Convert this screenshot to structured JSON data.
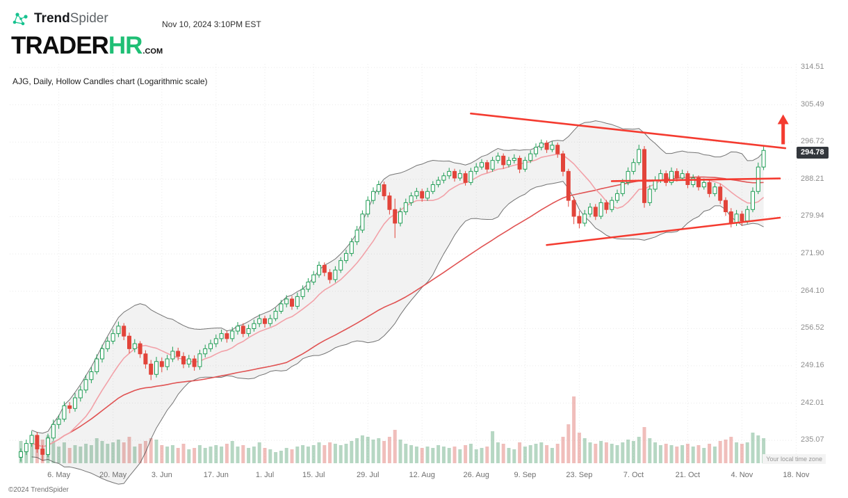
{
  "header": {
    "logo": {
      "trend": "Trend",
      "spider": "Spider"
    },
    "timestamp": "Nov 10, 2024 3:10PM EST",
    "site_logo": {
      "trader": "TRADER",
      "hr": "HR",
      "com": ".COM"
    },
    "subtitle": "AJG, Daily, Hollow Candles chart (Logarithmic scale)"
  },
  "price_axis": {
    "labels": [
      "314.51",
      "305.49",
      "296.72",
      "288.21",
      "279.94",
      "271.90",
      "264.10",
      "256.52",
      "249.16",
      "242.01",
      "235.07"
    ],
    "current_price": "294.78"
  },
  "footer": {
    "copyright": "©2024 TrendSpider",
    "timezone_note": "Your local time zone"
  },
  "chart_data": {
    "type": "candlestick",
    "symbol": "AJG",
    "timeframe": "Daily",
    "style": "Hollow Candles",
    "scale": "Logarithmic",
    "title": "AJG, Daily, Hollow Candles chart (Logarithmic scale)",
    "y_range": [
      231,
      316.5
    ],
    "x_ticks": [
      {
        "label": "6. May",
        "t": 7
      },
      {
        "label": "20. May",
        "t": 17
      },
      {
        "label": "3. Jun",
        "t": 26
      },
      {
        "label": "17. Jun",
        "t": 36
      },
      {
        "label": "1. Jul",
        "t": 45
      },
      {
        "label": "15. Jul",
        "t": 54
      },
      {
        "label": "29. Jul",
        "t": 64
      },
      {
        "label": "12. Aug",
        "t": 74
      },
      {
        "label": "26. Aug",
        "t": 84
      },
      {
        "label": "9. Sep",
        "t": 93
      },
      {
        "label": "23. Sep",
        "t": 103
      },
      {
        "label": "7. Oct",
        "t": 113
      },
      {
        "label": "21. Oct",
        "t": 123
      },
      {
        "label": "4. Nov",
        "t": 133
      },
      {
        "label": "18. Nov",
        "t": 143
      }
    ],
    "columns": [
      "date",
      "open",
      "high",
      "low",
      "close",
      "volume_m"
    ],
    "candles": [
      [
        "Apr 25",
        232.0,
        233.6,
        231.2,
        233.0,
        1.6
      ],
      [
        "Apr 26",
        233.0,
        235.2,
        232.4,
        234.5,
        1.4
      ],
      [
        "Apr 29",
        234.5,
        236.8,
        233.9,
        236.0,
        1.8
      ],
      [
        "Apr 30",
        236.0,
        236.6,
        232.8,
        233.5,
        1.5
      ],
      [
        "May 1",
        233.5,
        234.2,
        231.3,
        232.5,
        1.7
      ],
      [
        "May 2",
        232.5,
        236.3,
        232.0,
        235.5,
        2.0
      ],
      [
        "May 3",
        235.5,
        238.9,
        235.0,
        238.0,
        1.6
      ],
      [
        "May 6",
        238.0,
        239.8,
        237.2,
        239.0,
        1.2
      ],
      [
        "May 7",
        239.0,
        242.3,
        238.5,
        241.5,
        1.5
      ],
      [
        "May 8",
        241.5,
        242.2,
        240.1,
        241.0,
        1.1
      ],
      [
        "May 9",
        241.0,
        243.9,
        240.4,
        243.0,
        1.3
      ],
      [
        "May 10",
        243.0,
        245.3,
        242.3,
        244.5,
        1.2
      ],
      [
        "May 13",
        244.5,
        247.4,
        243.9,
        246.5,
        1.4
      ],
      [
        "May 14",
        246.5,
        248.9,
        245.8,
        248.0,
        1.3
      ],
      [
        "May 15",
        248.0,
        251.4,
        247.5,
        250.5,
        1.8
      ],
      [
        "May 16",
        250.5,
        253.3,
        249.8,
        252.5,
        1.6
      ],
      [
        "May 17",
        252.5,
        254.8,
        251.9,
        254.0,
        1.4
      ],
      [
        "May 20",
        254.0,
        256.4,
        253.4,
        255.5,
        1.5
      ],
      [
        "May 21",
        255.5,
        257.9,
        254.8,
        257.0,
        1.7
      ],
      [
        "May 22",
        257.0,
        257.6,
        254.2,
        255.0,
        1.5
      ],
      [
        "May 23",
        255.0,
        255.7,
        251.6,
        252.5,
        1.9
      ],
      [
        "May 24",
        252.5,
        254.4,
        251.8,
        253.5,
        1.2
      ],
      [
        "May 28",
        253.5,
        254.0,
        250.7,
        251.5,
        1.4
      ],
      [
        "May 29",
        251.5,
        252.2,
        248.6,
        249.5,
        1.6
      ],
      [
        "May 30",
        249.5,
        250.3,
        246.4,
        247.5,
        1.8
      ],
      [
        "May 31",
        247.5,
        250.9,
        246.9,
        250.0,
        1.7
      ],
      [
        "Jun 3",
        250.0,
        250.8,
        247.9,
        249.0,
        1.3
      ],
      [
        "Jun 4",
        249.0,
        251.3,
        248.3,
        250.5,
        1.2
      ],
      [
        "Jun 5",
        250.5,
        252.9,
        249.9,
        252.0,
        1.3
      ],
      [
        "Jun 6",
        252.0,
        252.7,
        250.2,
        251.0,
        1.1
      ],
      [
        "Jun 7",
        251.0,
        251.8,
        248.7,
        249.5,
        1.4
      ],
      [
        "Jun 10",
        249.5,
        251.3,
        248.8,
        250.5,
        1.0
      ],
      [
        "Jun 11",
        250.5,
        251.2,
        248.2,
        249.0,
        1.1
      ],
      [
        "Jun 12",
        249.0,
        252.3,
        248.4,
        251.5,
        1.3
      ],
      [
        "Jun 13",
        251.5,
        253.3,
        250.8,
        252.5,
        1.1
      ],
      [
        "Jun 14",
        252.5,
        254.3,
        251.9,
        253.5,
        1.2
      ],
      [
        "Jun 17",
        253.5,
        255.3,
        252.8,
        254.5,
        1.3
      ],
      [
        "Jun 18",
        254.5,
        256.3,
        253.9,
        255.5,
        1.2
      ],
      [
        "Jun 20",
        255.5,
        256.1,
        253.7,
        254.5,
        1.4
      ],
      [
        "Jun 21",
        254.5,
        256.8,
        253.9,
        256.0,
        1.6
      ],
      [
        "Jun 24",
        256.0,
        257.8,
        255.3,
        257.0,
        1.2
      ],
      [
        "Jun 25",
        257.0,
        257.6,
        254.8,
        255.5,
        1.3
      ],
      [
        "Jun 26",
        255.5,
        257.3,
        254.9,
        256.5,
        1.1
      ],
      [
        "Jun 27",
        256.5,
        258.3,
        255.9,
        257.5,
        1.2
      ],
      [
        "Jun 28",
        257.5,
        259.4,
        256.8,
        258.5,
        1.5
      ],
      [
        "Jul 1",
        258.5,
        259.1,
        256.7,
        257.5,
        1.1
      ],
      [
        "Jul 2",
        257.5,
        259.3,
        256.9,
        258.5,
        1.0
      ],
      [
        "Jul 3",
        258.5,
        260.7,
        258.0,
        260.0,
        0.8
      ],
      [
        "Jul 5",
        260.0,
        262.3,
        259.5,
        261.5,
        0.9
      ],
      [
        "Jul 8",
        261.5,
        263.3,
        260.8,
        262.5,
        1.1
      ],
      [
        "Jul 9",
        262.5,
        263.1,
        260.3,
        261.0,
        1.0
      ],
      [
        "Jul 10",
        261.0,
        263.8,
        260.4,
        263.0,
        1.2
      ],
      [
        "Jul 11",
        263.0,
        265.3,
        262.4,
        264.5,
        1.3
      ],
      [
        "Jul 12",
        264.5,
        266.8,
        263.9,
        266.0,
        1.2
      ],
      [
        "Jul 15",
        266.0,
        268.3,
        265.4,
        267.5,
        1.3
      ],
      [
        "Jul 16",
        267.5,
        270.3,
        266.9,
        269.5,
        1.5
      ],
      [
        "Jul 17",
        269.5,
        270.1,
        267.2,
        268.0,
        1.3
      ],
      [
        "Jul 18",
        268.0,
        268.7,
        265.7,
        266.5,
        1.5
      ],
      [
        "Jul 19",
        266.5,
        269.3,
        265.9,
        268.5,
        1.4
      ],
      [
        "Jul 22",
        268.5,
        271.2,
        267.9,
        270.5,
        1.3
      ],
      [
        "Jul 23",
        270.5,
        272.8,
        269.9,
        272.0,
        1.4
      ],
      [
        "Jul 24",
        272.0,
        275.3,
        271.4,
        274.5,
        1.6
      ],
      [
        "Jul 25",
        274.5,
        277.9,
        273.8,
        277.0,
        1.8
      ],
      [
        "Jul 26",
        277.0,
        281.3,
        276.4,
        280.5,
        2.0
      ],
      [
        "Jul 29",
        280.5,
        284.4,
        279.8,
        283.5,
        1.9
      ],
      [
        "Jul 30",
        283.5,
        286.4,
        282.7,
        285.5,
        1.7
      ],
      [
        "Jul 31",
        285.5,
        287.9,
        284.8,
        287.0,
        1.8
      ],
      [
        "Aug 1",
        287.0,
        287.7,
        283.6,
        284.5,
        1.6
      ],
      [
        "Aug 2",
        284.5,
        285.3,
        280.4,
        281.5,
        1.9
      ],
      [
        "Aug 5",
        281.5,
        283.9,
        275.3,
        278.5,
        2.4
      ],
      [
        "Aug 6",
        278.5,
        281.9,
        277.8,
        281.0,
        1.7
      ],
      [
        "Aug 7",
        281.0,
        283.9,
        280.3,
        283.0,
        1.4
      ],
      [
        "Aug 8",
        283.0,
        285.3,
        282.3,
        284.5,
        1.3
      ],
      [
        "Aug 9",
        284.5,
        286.3,
        283.8,
        285.5,
        1.2
      ],
      [
        "Aug 12",
        285.5,
        286.1,
        283.2,
        284.0,
        1.1
      ],
      [
        "Aug 13",
        284.0,
        286.3,
        283.4,
        285.5,
        1.2
      ],
      [
        "Aug 14",
        285.5,
        287.8,
        284.9,
        287.0,
        1.1
      ],
      [
        "Aug 15",
        287.0,
        288.8,
        286.4,
        288.0,
        1.3
      ],
      [
        "Aug 16",
        288.0,
        289.7,
        287.3,
        289.0,
        1.2
      ],
      [
        "Aug 19",
        289.0,
        290.8,
        288.3,
        290.0,
        1.1
      ],
      [
        "Aug 20",
        290.0,
        290.6,
        287.7,
        288.5,
        1.2
      ],
      [
        "Aug 21",
        288.5,
        290.4,
        287.9,
        289.5,
        1.0
      ],
      [
        "Aug 22",
        289.5,
        290.1,
        286.8,
        287.5,
        1.3
      ],
      [
        "Aug 23",
        287.5,
        290.8,
        286.9,
        290.0,
        1.4
      ],
      [
        "Aug 26",
        290.0,
        291.9,
        289.3,
        291.0,
        1.0
      ],
      [
        "Aug 27",
        291.0,
        292.8,
        290.4,
        292.0,
        1.1
      ],
      [
        "Aug 28",
        292.0,
        292.6,
        289.7,
        290.5,
        1.2
      ],
      [
        "Aug 29",
        290.5,
        293.3,
        289.9,
        292.5,
        2.3
      ],
      [
        "Aug 30",
        292.5,
        294.3,
        291.8,
        293.5,
        1.5
      ],
      [
        "Sep 3",
        293.5,
        294.1,
        290.6,
        291.5,
        1.4
      ],
      [
        "Sep 4",
        291.5,
        293.3,
        290.9,
        292.5,
        1.1
      ],
      [
        "Sep 5",
        292.5,
        293.9,
        291.8,
        293.0,
        1.0
      ],
      [
        "Sep 6",
        293.0,
        293.6,
        289.6,
        290.5,
        1.5
      ],
      [
        "Sep 9",
        290.5,
        293.3,
        289.9,
        292.5,
        1.2
      ],
      [
        "Sep 10",
        292.5,
        294.8,
        291.9,
        294.0,
        1.3
      ],
      [
        "Sep 11",
        294.0,
        296.4,
        293.3,
        295.5,
        1.4
      ],
      [
        "Sep 12",
        295.5,
        297.3,
        294.8,
        296.5,
        1.5
      ],
      [
        "Sep 13",
        296.5,
        297.1,
        294.2,
        295.0,
        1.3
      ],
      [
        "Sep 16",
        295.0,
        296.9,
        294.4,
        296.0,
        1.1
      ],
      [
        "Sep 17",
        296.0,
        296.6,
        293.1,
        294.0,
        1.4
      ],
      [
        "Sep 18",
        294.0,
        294.7,
        288.9,
        290.0,
        1.9
      ],
      [
        "Sep 19",
        290.0,
        290.6,
        282.1,
        283.5,
        2.8
      ],
      [
        "Sep 20",
        283.5,
        284.3,
        278.3,
        280.0,
        4.8
      ],
      [
        "Sep 23",
        280.0,
        281.2,
        277.4,
        278.5,
        2.2
      ],
      [
        "Sep 24",
        278.5,
        281.4,
        277.8,
        280.5,
        1.8
      ],
      [
        "Sep 25",
        280.5,
        282.9,
        279.8,
        282.0,
        1.5
      ],
      [
        "Sep 26",
        282.0,
        282.7,
        279.2,
        280.0,
        1.4
      ],
      [
        "Sep 27",
        280.0,
        283.9,
        279.4,
        283.0,
        1.6
      ],
      [
        "Sep 30",
        283.0,
        283.6,
        280.6,
        281.5,
        1.5
      ],
      [
        "Oct 1",
        281.5,
        284.3,
        280.9,
        283.5,
        1.4
      ],
      [
        "Oct 2",
        283.5,
        285.9,
        282.9,
        285.0,
        1.3
      ],
      [
        "Oct 3",
        285.0,
        288.3,
        284.4,
        287.5,
        1.5
      ],
      [
        "Oct 4",
        287.5,
        290.9,
        286.9,
        290.0,
        1.7
      ],
      [
        "Oct 7",
        290.0,
        292.9,
        289.3,
        292.0,
        1.6
      ],
      [
        "Oct 8",
        292.0,
        296.1,
        291.4,
        295.0,
        1.9
      ],
      [
        "Oct 9",
        295.0,
        295.8,
        281.9,
        283.0,
        2.6
      ],
      [
        "Oct 10",
        283.0,
        286.9,
        282.3,
        286.0,
        1.8
      ],
      [
        "Oct 11",
        286.0,
        288.9,
        285.4,
        288.0,
        1.5
      ],
      [
        "Oct 14",
        288.0,
        290.4,
        287.4,
        289.5,
        1.3
      ],
      [
        "Oct 15",
        289.5,
        290.2,
        286.7,
        287.5,
        1.4
      ],
      [
        "Oct 16",
        287.5,
        290.9,
        286.9,
        290.0,
        1.3
      ],
      [
        "Oct 17",
        290.0,
        290.7,
        287.7,
        288.5,
        1.2
      ],
      [
        "Oct 18",
        288.5,
        290.4,
        287.9,
        289.5,
        1.3
      ],
      [
        "Oct 21",
        289.5,
        290.1,
        286.2,
        287.0,
        1.4
      ],
      [
        "Oct 22",
        287.0,
        289.3,
        286.4,
        288.5,
        1.2
      ],
      [
        "Oct 23",
        288.5,
        289.1,
        285.7,
        286.5,
        1.3
      ],
      [
        "Oct 24",
        286.5,
        288.4,
        285.9,
        287.5,
        1.1
      ],
      [
        "Oct 25",
        287.5,
        288.1,
        284.2,
        285.0,
        1.4
      ],
      [
        "Oct 28",
        285.0,
        287.4,
        284.4,
        286.5,
        1.2
      ],
      [
        "Oct 29",
        286.5,
        287.2,
        282.7,
        283.5,
        1.6
      ],
      [
        "Oct 30",
        283.5,
        284.2,
        280.1,
        281.0,
        1.7
      ],
      [
        "Oct 31",
        281.0,
        281.8,
        277.6,
        278.5,
        1.9
      ],
      [
        "Nov 1",
        278.5,
        281.4,
        277.9,
        280.5,
        1.5
      ],
      [
        "Nov 4",
        280.5,
        281.2,
        277.9,
        279.0,
        1.4
      ],
      [
        "Nov 5",
        279.0,
        282.3,
        278.4,
        281.5,
        1.5
      ],
      [
        "Nov 6",
        281.5,
        286.4,
        280.9,
        285.5,
        2.2
      ],
      [
        "Nov 7",
        285.5,
        292.0,
        284.9,
        291.0,
        2.0
      ],
      [
        "Nov 8",
        291.0,
        295.9,
        290.3,
        294.78,
        1.8
      ]
    ],
    "indicators": {
      "bollinger_period": 20,
      "bollinger_stddev": 2,
      "sma_fast_period": 10,
      "sma_slow_period": 50
    },
    "trendlines": [
      {
        "name": "upper-resistance",
        "from_date": "Aug 23",
        "to_date": "Nov 14",
        "t1": 83,
        "p1": 303.4,
        "t2": 141,
        "p2": 295.3
      },
      {
        "name": "mid-line",
        "from_date": "Oct 1",
        "to_date": "Nov 12",
        "t1": 109,
        "p1": 287.8,
        "t2": 140,
        "p2": 288.4
      },
      {
        "name": "lower-support",
        "from_date": "Sep 13",
        "to_date": "Nov 12",
        "t1": 97,
        "p1": 273.8,
        "t2": 140,
        "p2": 279.7
      }
    ],
    "arrow_annotation": {
      "t": 140.6,
      "price_from": 296.2,
      "price_to": 303.2,
      "direction": "up"
    }
  },
  "colors": {
    "up": "#1f9d55",
    "down": "#e2443a",
    "band_fill": "rgba(90,90,90,0.08)",
    "band_line": "rgba(70,70,70,0.75)",
    "sma_fast": "#f2a1a8",
    "sma_slow": "#e05252",
    "trendline": "#f43b30",
    "vol_up": "rgba(64,150,96,0.38)",
    "vol_down": "rgba(222,110,104,0.45)",
    "grid": "#e9e9e9",
    "accent_green": "#1fbf75",
    "badge_bg": "#33373c"
  }
}
